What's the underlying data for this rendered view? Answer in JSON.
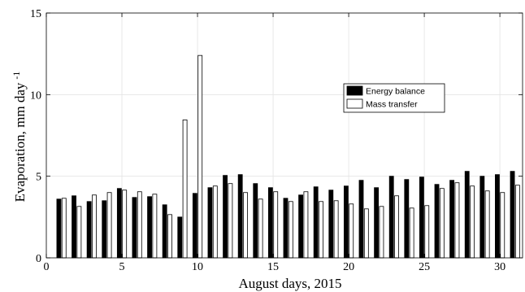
{
  "chart_data": {
    "type": "bar",
    "xlabel": "August days, 2015",
    "ylabel": "Evaporation, mm day",
    "ylabel_superscript": "-1",
    "xlim": [
      0,
      31.5
    ],
    "ylim": [
      0,
      15
    ],
    "xticks": [
      0,
      5,
      10,
      15,
      20,
      25,
      30
    ],
    "yticks": [
      0,
      5,
      10,
      15
    ],
    "grid": true,
    "legend_position": "right-middle",
    "x": [
      1,
      2,
      3,
      4,
      5,
      6,
      7,
      8,
      9,
      10,
      11,
      12,
      13,
      14,
      15,
      16,
      17,
      18,
      19,
      20,
      21,
      22,
      23,
      24,
      25,
      26,
      27,
      28,
      29,
      30,
      31
    ],
    "series": [
      {
        "name": "Energy balance",
        "fill": "#000000",
        "values": [
          3.6,
          3.8,
          3.45,
          3.5,
          4.25,
          3.7,
          3.75,
          3.25,
          2.5,
          3.95,
          4.3,
          5.05,
          5.1,
          4.55,
          4.3,
          3.65,
          3.85,
          4.35,
          4.15,
          4.4,
          4.75,
          4.3,
          5.0,
          4.8,
          4.95,
          4.5,
          4.75,
          5.3,
          5.0,
          5.1,
          5.3
        ]
      },
      {
        "name": "Mass transfer",
        "fill": "#ffffff",
        "values": [
          3.65,
          3.15,
          3.85,
          4.0,
          4.15,
          4.05,
          3.9,
          2.65,
          8.45,
          12.4,
          4.4,
          4.55,
          4.0,
          3.6,
          4.05,
          3.45,
          4.05,
          3.45,
          3.5,
          3.3,
          3.0,
          3.15,
          3.8,
          3.05,
          3.2,
          4.25,
          4.6,
          4.4,
          4.1,
          4.0,
          4.45
        ]
      }
    ]
  }
}
